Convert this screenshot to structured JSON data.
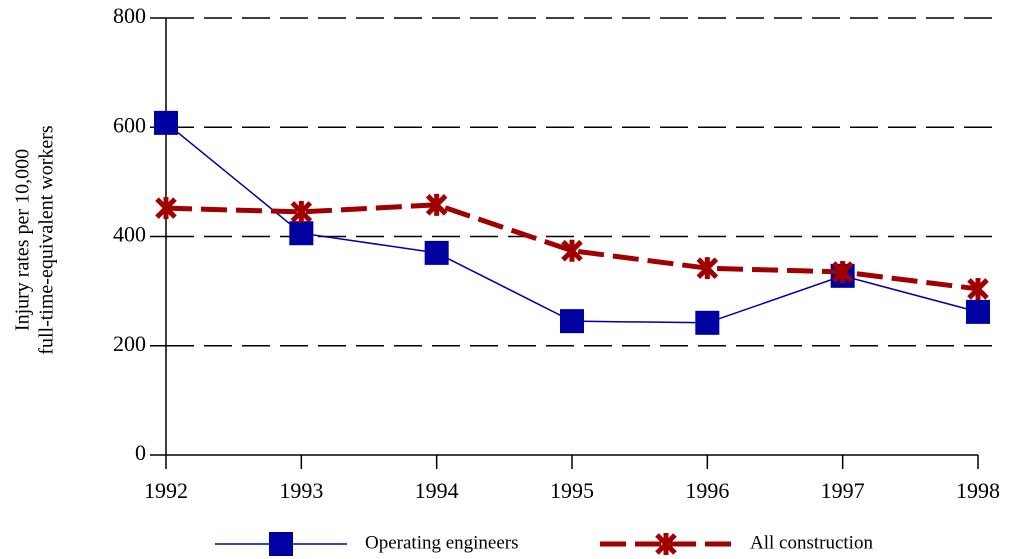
{
  "chart_data": {
    "type": "line",
    "y_label": [
      "Injury rates per 10,000",
      "full-time-equivalent workers"
    ],
    "x": [
      1992,
      1993,
      1994,
      1995,
      1996,
      1997,
      1998
    ],
    "xlim": [
      1992,
      1998
    ],
    "xticks": [
      1992,
      1993,
      1994,
      1995,
      1996,
      1997,
      1998
    ],
    "ylim": [
      0,
      800
    ],
    "yticks": [
      0,
      200,
      400,
      600,
      800
    ],
    "grid": true,
    "legend": "bottom",
    "series": [
      {
        "name": "Operating engineers",
        "color": "#0000a0",
        "marker": "square",
        "values": [
          608,
          406,
          370,
          245,
          242,
          328,
          262
        ]
      },
      {
        "name": "All construction",
        "color": "#a00000",
        "marker": "star",
        "values": [
          452,
          445,
          458,
          374,
          342,
          335,
          304
        ]
      }
    ]
  }
}
